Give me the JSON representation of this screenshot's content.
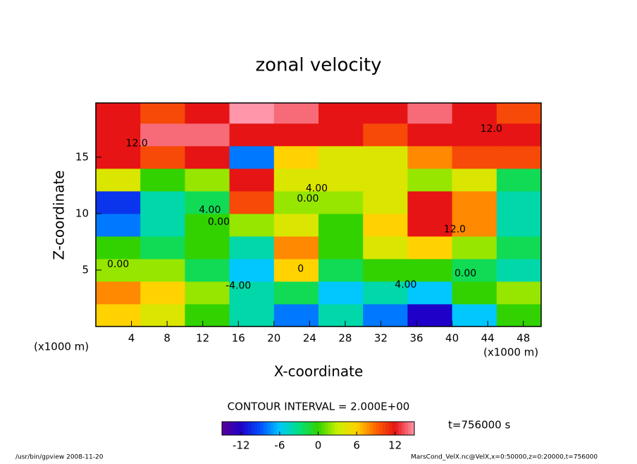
{
  "chart_data": {
    "type": "heatmap",
    "title": "zonal velocity",
    "x_label": "X-coordinate",
    "y_label": "Z-coordinate",
    "x_unit_labels": [
      "(x1000 m)",
      "(x1000 m)"
    ],
    "xlim": [
      0,
      50
    ],
    "ylim": [
      0,
      19.8
    ],
    "xticks": [
      4,
      8,
      12,
      16,
      20,
      24,
      28,
      32,
      36,
      40,
      44,
      48
    ],
    "yticks": [
      5,
      10,
      15
    ],
    "x_edges": [
      0,
      5,
      10,
      15,
      20,
      25,
      30,
      35,
      40,
      45,
      50
    ],
    "y_edges": [
      0,
      2,
      4,
      6,
      8,
      10,
      12,
      14,
      16,
      18,
      19.8
    ],
    "z": [
      [
        6,
        4,
        0,
        -4,
        -8,
        -4,
        -8,
        -12,
        -6,
        0
      ],
      [
        8,
        6,
        2,
        -4,
        -2,
        -6,
        -4,
        -6,
        0,
        2
      ],
      [
        2,
        2,
        -2,
        -6,
        6,
        -2,
        0,
        0,
        -2,
        -4
      ],
      [
        0,
        -2,
        0,
        -4,
        8,
        0,
        4,
        6,
        2,
        -2
      ],
      [
        -8,
        -4,
        0,
        2,
        4,
        0,
        6,
        12,
        8,
        -4
      ],
      [
        -10,
        -4,
        -2,
        10,
        2,
        2,
        4,
        12,
        8,
        -4
      ],
      [
        4,
        0,
        2,
        12,
        4,
        4,
        4,
        2,
        4,
        -2
      ],
      [
        12,
        10,
        12,
        -8,
        6,
        4,
        4,
        8,
        10,
        10
      ],
      [
        12,
        14,
        14,
        12,
        12,
        12,
        10,
        12,
        12,
        12
      ],
      [
        12,
        10,
        12,
        16,
        14,
        12,
        12,
        14,
        12,
        10
      ]
    ],
    "colormap": [
      "#5a0096",
      "#1e00c8",
      "#0050ff",
      "#00c8ff",
      "#00e080",
      "#32d200",
      "#c8f000",
      "#ffd200",
      "#ff6400",
      "#e61414",
      "#ff96aa"
    ],
    "colorbar": {
      "range": [
        -15,
        15
      ],
      "ticks": [
        -12,
        -6,
        0,
        6,
        12
      ]
    },
    "contour_interval": "CONTOUR INTERVAL = 2.000E+00",
    "time_label": "t=756000 s",
    "footer_left": "/usr/bin/gpview  2008-11-20",
    "footer_right": "MarsCond_VelX.nc@VelX,x=0:50000,z=0:20000,t=756000",
    "annotations": [
      {
        "text": "12.0",
        "x": 4.6,
        "y": 16.2
      },
      {
        "text": "4.00",
        "x": 24.8,
        "y": 12.2
      },
      {
        "text": "0.00",
        "x": 23.8,
        "y": 11.3
      },
      {
        "text": "4.00",
        "x": 12.8,
        "y": 10.3
      },
      {
        "text": "0.00",
        "x": 13.8,
        "y": 9.25
      },
      {
        "text": "-4.00",
        "x": 16,
        "y": 3.6
      },
      {
        "text": "4.00",
        "x": 34.8,
        "y": 3.7
      },
      {
        "text": "0.00",
        "x": 41.5,
        "y": 4.7
      },
      {
        "text": "12.0",
        "x": 40.3,
        "y": 8.6
      },
      {
        "text": "12.0",
        "x": 44.4,
        "y": 17.5
      },
      {
        "text": "0.00",
        "x": 2.5,
        "y": 5.5
      },
      {
        "text": "0",
        "x": 23,
        "y": 5.1
      }
    ]
  }
}
